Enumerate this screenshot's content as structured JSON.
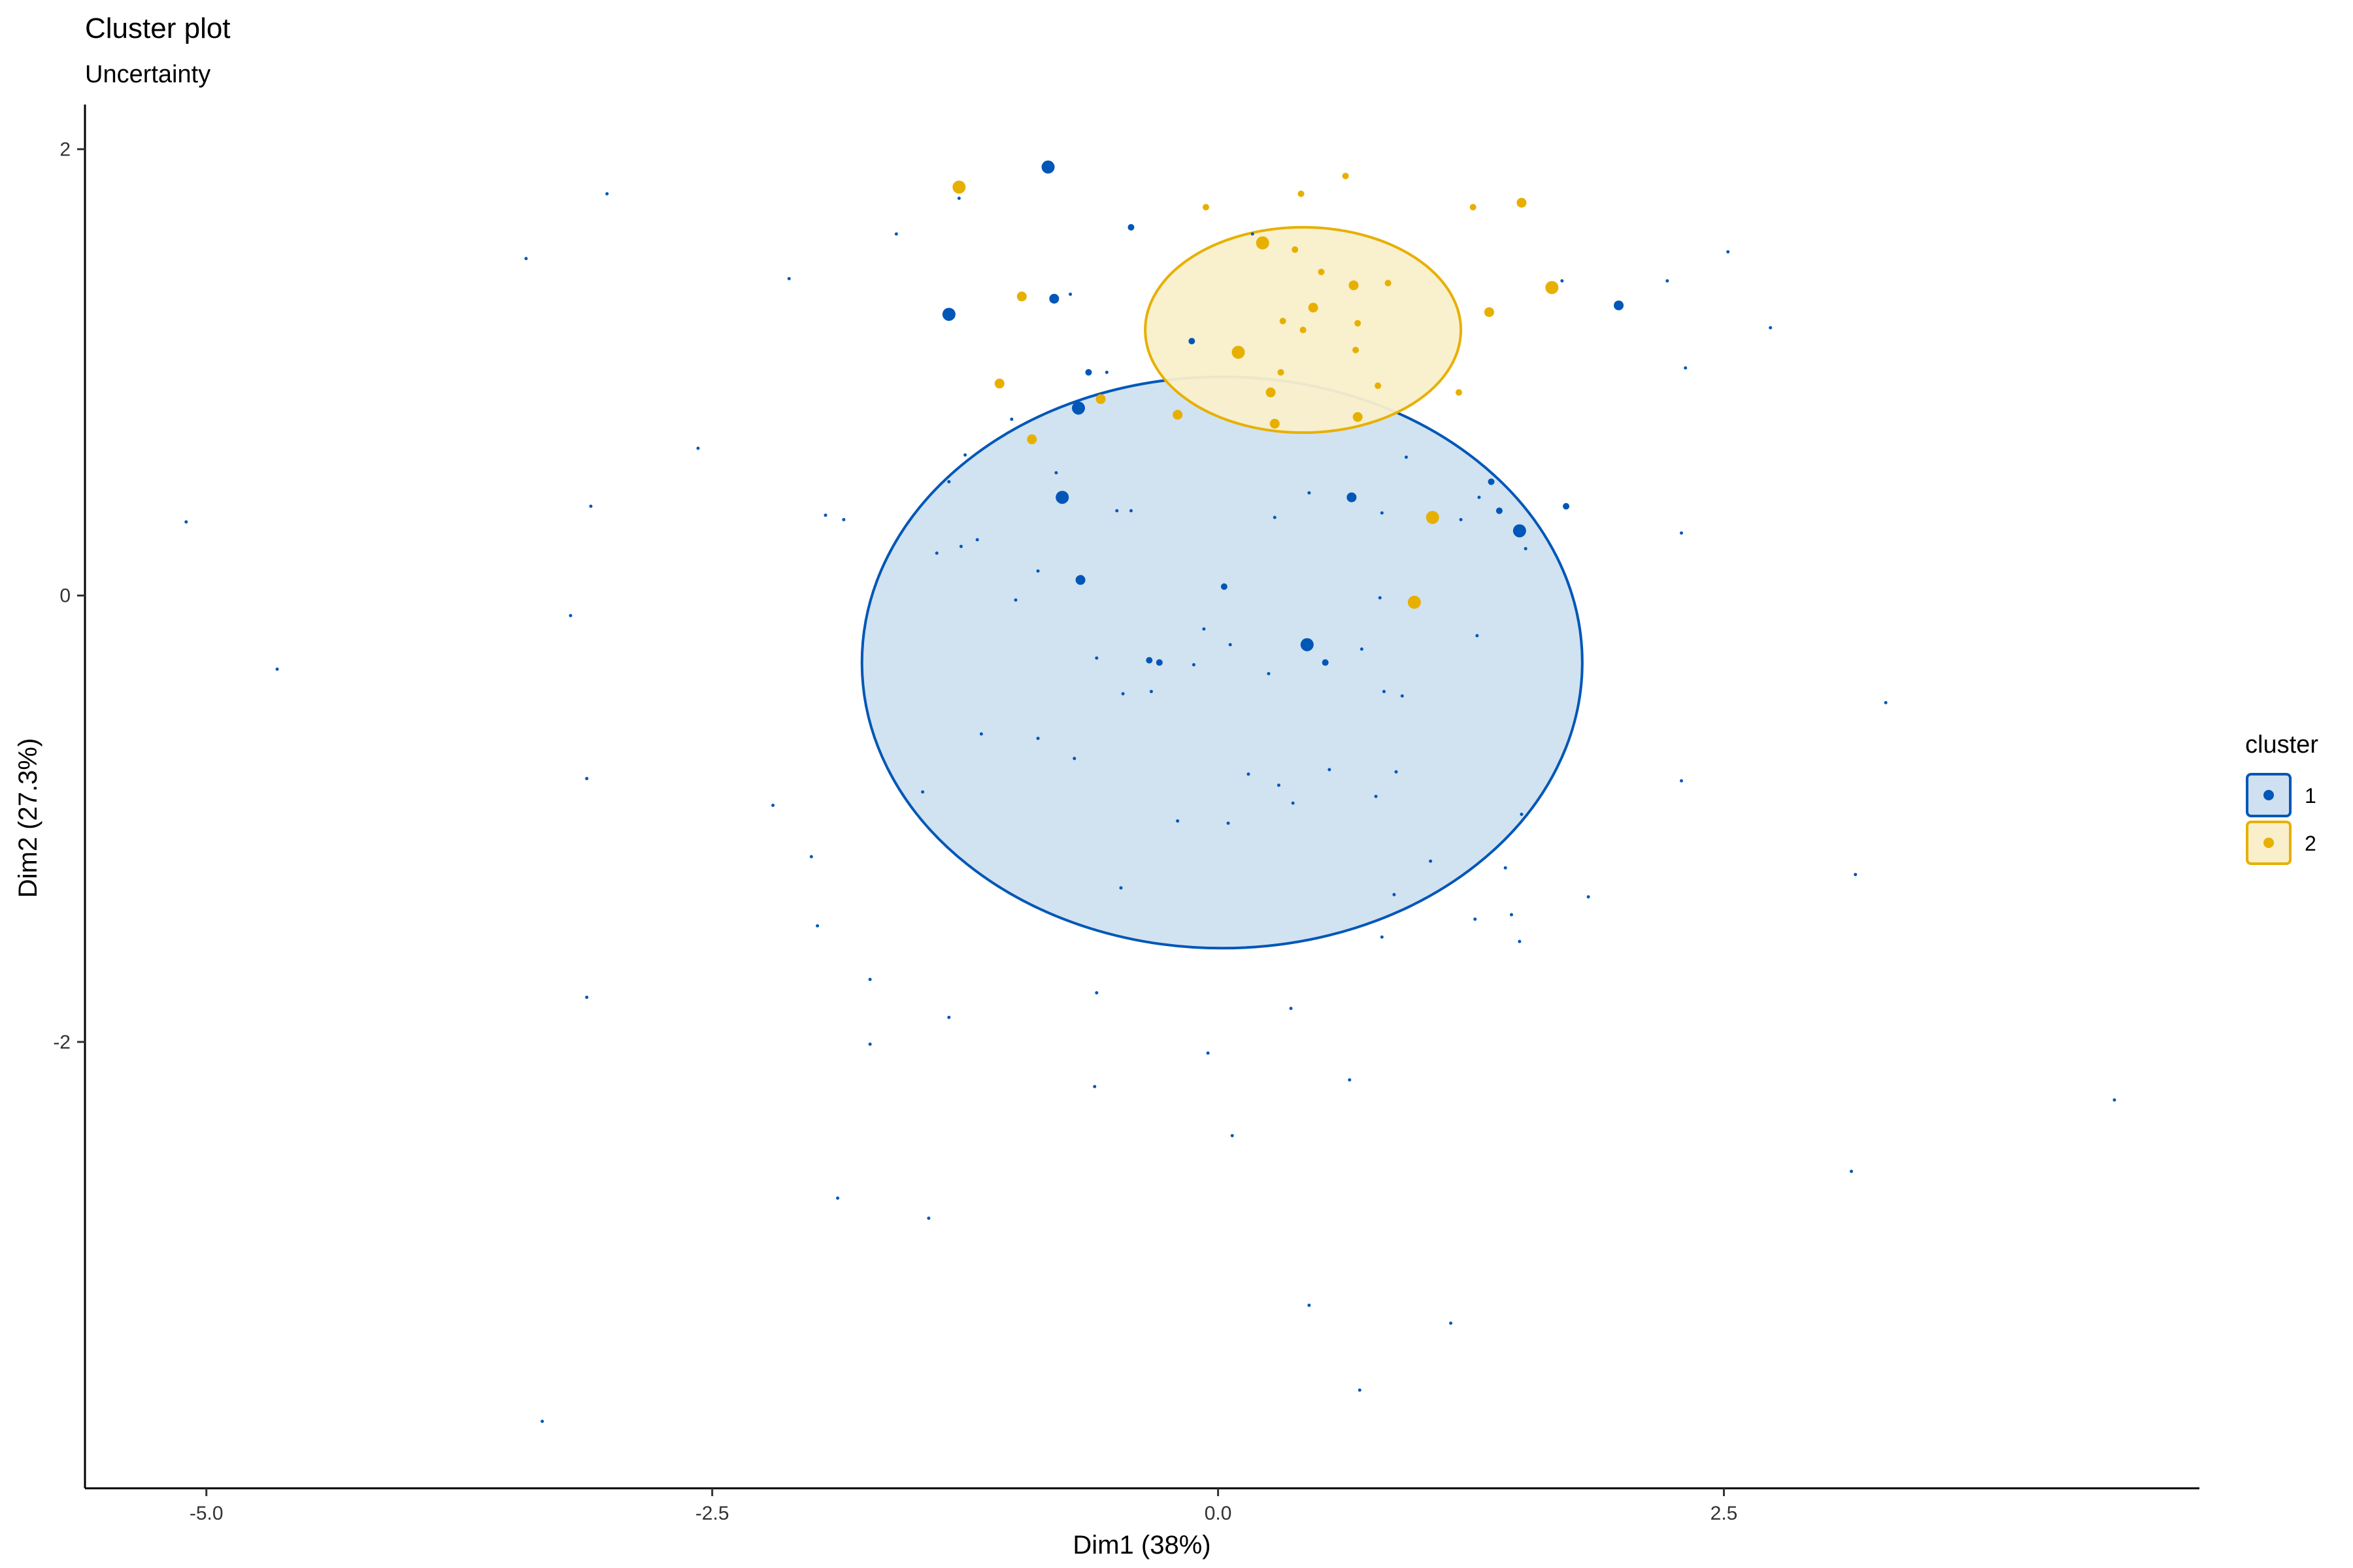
{
  "chart_data": {
    "type": "scatter",
    "title": "Cluster plot",
    "subtitle": "Uncertainty",
    "xlabel": "Dim1 (38%)",
    "ylabel": "Dim2 (27.3%)",
    "xlim": [
      -5.6,
      4.85
    ],
    "ylim": [
      -4.0,
      2.2
    ],
    "x_ticks": [
      -5.0,
      -2.5,
      0.0,
      2.5
    ],
    "x_tick_labels": [
      "-5.0",
      "-2.5",
      "0.0",
      "2.5"
    ],
    "y_ticks": [
      2,
      0,
      -2
    ],
    "y_tick_labels": [
      "2",
      "0",
      "-2"
    ],
    "grid": false,
    "legend": {
      "title": "cluster",
      "position": "right",
      "entries": [
        "1",
        "2"
      ]
    },
    "colors": {
      "1": "#0057b7",
      "2": "#e7b000"
    },
    "ellipses": [
      {
        "cluster": "1",
        "cx": 0.02,
        "cy": -0.3,
        "rx": 1.78,
        "ry": 1.28,
        "fill": "#cfe0f0",
        "stroke": "#0057b7"
      },
      {
        "cluster": "2",
        "cx": 0.42,
        "cy": 1.19,
        "rx": 0.78,
        "ry": 0.46,
        "fill": "#f9efcb",
        "stroke": "#e7b000"
      }
    ],
    "series": [
      {
        "name": "1",
        "points": [
          {
            "x": -0.84,
            "y": 1.92,
            "u": 3
          },
          {
            "x": -1.33,
            "y": 1.26,
            "u": 3
          },
          {
            "x": -0.81,
            "y": 1.33,
            "u": 2
          },
          {
            "x": -0.69,
            "y": 0.84,
            "u": 3
          },
          {
            "x": -0.77,
            "y": 0.44,
            "u": 3
          },
          {
            "x": -0.68,
            "y": 0.07,
            "u": 2
          },
          {
            "x": 1.49,
            "y": 0.29,
            "u": 3
          },
          {
            "x": 1.98,
            "y": 1.3,
            "u": 2
          },
          {
            "x": 0.44,
            "y": -0.22,
            "u": 3
          },
          {
            "x": 0.66,
            "y": 0.44,
            "u": 2
          },
          {
            "x": -0.64,
            "y": 1.0,
            "u": 1
          },
          {
            "x": -0.43,
            "y": 1.65,
            "u": 1
          },
          {
            "x": 0.53,
            "y": -0.3,
            "u": 1
          },
          {
            "x": 1.35,
            "y": 0.51,
            "u": 1
          },
          {
            "x": 1.39,
            "y": 0.38,
            "u": 1
          },
          {
            "x": 1.72,
            "y": 0.4,
            "u": 1
          },
          {
            "x": -0.13,
            "y": 1.14,
            "u": 1
          },
          {
            "x": 0.03,
            "y": 0.04,
            "u": 1
          },
          {
            "x": -0.34,
            "y": -0.29,
            "u": 1
          },
          {
            "x": -0.29,
            "y": -0.3,
            "u": 1
          },
          {
            "x": -1.28,
            "y": 1.78,
            "u": 0
          },
          {
            "x": -0.73,
            "y": 1.35,
            "u": 0
          },
          {
            "x": -0.55,
            "y": 1.0,
            "u": 0
          },
          {
            "x": -1.59,
            "y": 1.62,
            "u": 0
          },
          {
            "x": 0.17,
            "y": 1.62,
            "u": 0
          },
          {
            "x": 1.7,
            "y": 1.41,
            "u": 0
          },
          {
            "x": 2.22,
            "y": 1.41,
            "u": 0
          },
          {
            "x": 2.52,
            "y": 1.54,
            "u": 0
          },
          {
            "x": 2.73,
            "y": 1.2,
            "u": 0
          },
          {
            "x": 2.31,
            "y": 1.02,
            "u": 0
          },
          {
            "x": -3.02,
            "y": 1.8,
            "u": 0
          },
          {
            "x": -3.42,
            "y": 1.51,
            "u": 0
          },
          {
            "x": -2.12,
            "y": 1.42,
            "u": 0
          },
          {
            "x": -2.57,
            "y": 0.66,
            "u": 0
          },
          {
            "x": -3.1,
            "y": 0.4,
            "u": 0
          },
          {
            "x": -5.1,
            "y": 0.33,
            "u": 0
          },
          {
            "x": -4.65,
            "y": -0.33,
            "u": 0
          },
          {
            "x": -3.2,
            "y": -0.09,
            "u": 0
          },
          {
            "x": -3.12,
            "y": -0.82,
            "u": 0
          },
          {
            "x": -1.94,
            "y": 0.36,
            "u": 0
          },
          {
            "x": -1.85,
            "y": 0.34,
            "u": 0
          },
          {
            "x": -1.25,
            "y": 0.63,
            "u": 0
          },
          {
            "x": -1.33,
            "y": 0.51,
            "u": 0
          },
          {
            "x": -1.02,
            "y": 0.79,
            "u": 0
          },
          {
            "x": -1.27,
            "y": 0.22,
            "u": 0
          },
          {
            "x": -1.39,
            "y": 0.19,
            "u": 0
          },
          {
            "x": -1.19,
            "y": 0.25,
            "u": 0
          },
          {
            "x": -0.8,
            "y": 0.55,
            "u": 0
          },
          {
            "x": -0.5,
            "y": 0.38,
            "u": 0
          },
          {
            "x": -0.43,
            "y": 0.38,
            "u": 0
          },
          {
            "x": -0.89,
            "y": 0.11,
            "u": 0
          },
          {
            "x": -1.0,
            "y": -0.02,
            "u": 0
          },
          {
            "x": -0.6,
            "y": -0.28,
            "u": 0
          },
          {
            "x": -0.47,
            "y": -0.44,
            "u": 0
          },
          {
            "x": -0.33,
            "y": -0.43,
            "u": 0
          },
          {
            "x": -0.12,
            "y": -0.31,
            "u": 0
          },
          {
            "x": 0.28,
            "y": 0.35,
            "u": 0
          },
          {
            "x": 0.45,
            "y": 0.46,
            "u": 0
          },
          {
            "x": 0.81,
            "y": 0.37,
            "u": 0
          },
          {
            "x": 0.93,
            "y": 0.62,
            "u": 0
          },
          {
            "x": 1.2,
            "y": 0.34,
            "u": 0
          },
          {
            "x": 1.29,
            "y": 0.44,
            "u": 0
          },
          {
            "x": 1.52,
            "y": 0.21,
            "u": 0
          },
          {
            "x": 2.29,
            "y": 0.28,
            "u": 0
          },
          {
            "x": -0.07,
            "y": -0.15,
            "u": 0
          },
          {
            "x": 0.06,
            "y": -0.22,
            "u": 0
          },
          {
            "x": 0.25,
            "y": -0.35,
            "u": 0
          },
          {
            "x": 0.71,
            "y": -0.24,
            "u": 0
          },
          {
            "x": 0.8,
            "y": -0.01,
            "u": 0
          },
          {
            "x": 1.28,
            "y": -0.18,
            "u": 0
          },
          {
            "x": 0.82,
            "y": -0.43,
            "u": 0
          },
          {
            "x": 0.91,
            "y": -0.45,
            "u": 0
          },
          {
            "x": -1.17,
            "y": -0.62,
            "u": 0
          },
          {
            "x": -0.89,
            "y": -0.64,
            "u": 0
          },
          {
            "x": -0.71,
            "y": -0.73,
            "u": 0
          },
          {
            "x": -1.46,
            "y": -0.88,
            "u": 0
          },
          {
            "x": -2.2,
            "y": -0.94,
            "u": 0
          },
          {
            "x": -2.01,
            "y": -1.17,
            "u": 0
          },
          {
            "x": -1.98,
            "y": -1.48,
            "u": 0
          },
          {
            "x": -1.72,
            "y": -1.72,
            "u": 0
          },
          {
            "x": -1.72,
            "y": -2.01,
            "u": 0
          },
          {
            "x": -3.12,
            "y": -1.8,
            "u": 0
          },
          {
            "x": -1.33,
            "y": -1.89,
            "u": 0
          },
          {
            "x": -1.88,
            "y": -2.7,
            "u": 0
          },
          {
            "x": -1.43,
            "y": -2.79,
            "u": 0
          },
          {
            "x": -3.34,
            "y": -3.7,
            "u": 0
          },
          {
            "x": 0.15,
            "y": -0.8,
            "u": 0
          },
          {
            "x": 0.3,
            "y": -0.85,
            "u": 0
          },
          {
            "x": 0.37,
            "y": -0.93,
            "u": 0
          },
          {
            "x": 0.55,
            "y": -0.78,
            "u": 0
          },
          {
            "x": 0.78,
            "y": -0.9,
            "u": 0
          },
          {
            "x": 0.88,
            "y": -0.79,
            "u": 0
          },
          {
            "x": -0.2,
            "y": -1.01,
            "u": 0
          },
          {
            "x": 0.05,
            "y": -1.02,
            "u": 0
          },
          {
            "x": 1.5,
            "y": -0.98,
            "u": 0
          },
          {
            "x": 2.29,
            "y": -0.83,
            "u": 0
          },
          {
            "x": 1.05,
            "y": -1.19,
            "u": 0
          },
          {
            "x": 1.42,
            "y": -1.22,
            "u": 0
          },
          {
            "x": -0.48,
            "y": -1.31,
            "u": 0
          },
          {
            "x": 0.87,
            "y": -1.34,
            "u": 0
          },
          {
            "x": 0.81,
            "y": -1.53,
            "u": 0
          },
          {
            "x": 1.27,
            "y": -1.45,
            "u": 0
          },
          {
            "x": 1.45,
            "y": -1.43,
            "u": 0
          },
          {
            "x": 1.49,
            "y": -1.55,
            "u": 0
          },
          {
            "x": 1.83,
            "y": -1.35,
            "u": 0
          },
          {
            "x": -0.6,
            "y": -1.78,
            "u": 0
          },
          {
            "x": 0.36,
            "y": -1.85,
            "u": 0
          },
          {
            "x": -0.61,
            "y": -2.2,
            "u": 0
          },
          {
            "x": -0.05,
            "y": -2.05,
            "u": 0
          },
          {
            "x": 0.65,
            "y": -2.17,
            "u": 0
          },
          {
            "x": 0.07,
            "y": -2.42,
            "u": 0
          },
          {
            "x": 3.15,
            "y": -1.25,
            "u": 0
          },
          {
            "x": 3.3,
            "y": -0.48,
            "u": 0
          },
          {
            "x": 4.43,
            "y": -2.26,
            "u": 0
          },
          {
            "x": 3.13,
            "y": -2.58,
            "u": 0
          },
          {
            "x": 0.45,
            "y": -3.18,
            "u": 0
          },
          {
            "x": 1.15,
            "y": -3.26,
            "u": 0
          },
          {
            "x": 0.7,
            "y": -3.56,
            "u": 0
          }
        ]
      },
      {
        "name": "2",
        "points": [
          {
            "x": -1.28,
            "y": 1.83,
            "u": 3
          },
          {
            "x": 0.22,
            "y": 1.58,
            "u": 3
          },
          {
            "x": 0.1,
            "y": 1.09,
            "u": 3
          },
          {
            "x": 1.65,
            "y": 1.38,
            "u": 3
          },
          {
            "x": 1.06,
            "y": 0.35,
            "u": 3
          },
          {
            "x": 0.97,
            "y": -0.03,
            "u": 3
          },
          {
            "x": -0.92,
            "y": 0.7,
            "u": 2
          },
          {
            "x": 0.67,
            "y": 1.39,
            "u": 2
          },
          {
            "x": -1.08,
            "y": 0.95,
            "u": 2
          },
          {
            "x": 0.47,
            "y": 1.29,
            "u": 2
          },
          {
            "x": 1.34,
            "y": 1.27,
            "u": 2
          },
          {
            "x": -0.97,
            "y": 1.34,
            "u": 2
          },
          {
            "x": -0.2,
            "y": 0.81,
            "u": 2
          },
          {
            "x": 0.28,
            "y": 0.77,
            "u": 2
          },
          {
            "x": 0.26,
            "y": 0.91,
            "u": 2
          },
          {
            "x": -0.58,
            "y": 0.88,
            "u": 2
          },
          {
            "x": 0.69,
            "y": 0.8,
            "u": 2
          },
          {
            "x": 1.5,
            "y": 1.76,
            "u": 2
          },
          {
            "x": 1.26,
            "y": 1.74,
            "u": 1
          },
          {
            "x": 0.41,
            "y": 1.8,
            "u": 1
          },
          {
            "x": 0.63,
            "y": 1.88,
            "u": 1
          },
          {
            "x": -0.06,
            "y": 1.74,
            "u": 1
          },
          {
            "x": 0.69,
            "y": 1.22,
            "u": 1
          },
          {
            "x": 1.19,
            "y": 0.91,
            "u": 1
          },
          {
            "x": 0.38,
            "y": 1.55,
            "u": 1
          },
          {
            "x": 0.51,
            "y": 1.45,
            "u": 1
          },
          {
            "x": 0.84,
            "y": 1.4,
            "u": 1
          },
          {
            "x": 0.32,
            "y": 1.23,
            "u": 1
          },
          {
            "x": 0.42,
            "y": 1.19,
            "u": 1
          },
          {
            "x": 0.68,
            "y": 1.1,
            "u": 1
          },
          {
            "x": 0.31,
            "y": 1.0,
            "u": 1
          },
          {
            "x": 0.79,
            "y": 0.94,
            "u": 1
          }
        ]
      }
    ]
  }
}
